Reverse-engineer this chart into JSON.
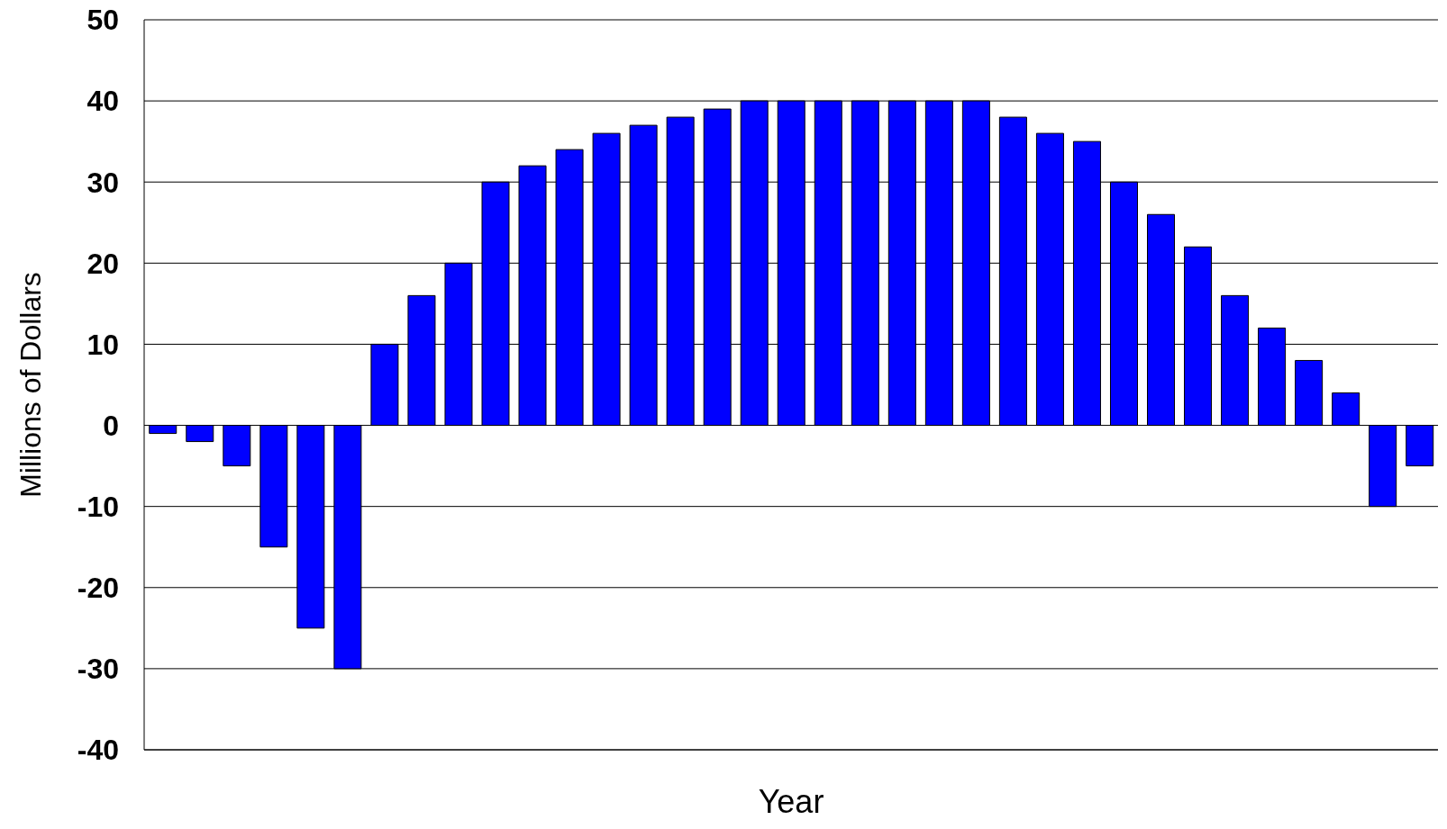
{
  "chart_data": {
    "type": "bar",
    "xlabel": "Year",
    "ylabel": "Millions of Dollars",
    "categories": [
      null,
      null,
      null,
      null,
      null,
      null,
      null,
      null,
      null,
      null,
      null,
      null,
      null,
      null,
      null,
      null,
      null,
      null,
      null,
      null,
      null,
      null,
      null,
      null,
      null,
      null,
      null,
      null,
      null,
      null,
      null,
      null,
      null,
      null,
      null
    ],
    "values": [
      -1,
      -2,
      -5,
      -15,
      -25,
      -30,
      10,
      16,
      20,
      30,
      32,
      34,
      36,
      37,
      38,
      39,
      40,
      40,
      40,
      40,
      40,
      40,
      40,
      38,
      36,
      35,
      30,
      26,
      22,
      16,
      12,
      8,
      4,
      -10,
      -5
    ],
    "color": "#0000ff",
    "ylim": [
      -40,
      50
    ],
    "yticks": [
      -40,
      -30,
      -20,
      -10,
      0,
      10,
      20,
      30,
      40,
      50
    ],
    "grid": "y"
  }
}
